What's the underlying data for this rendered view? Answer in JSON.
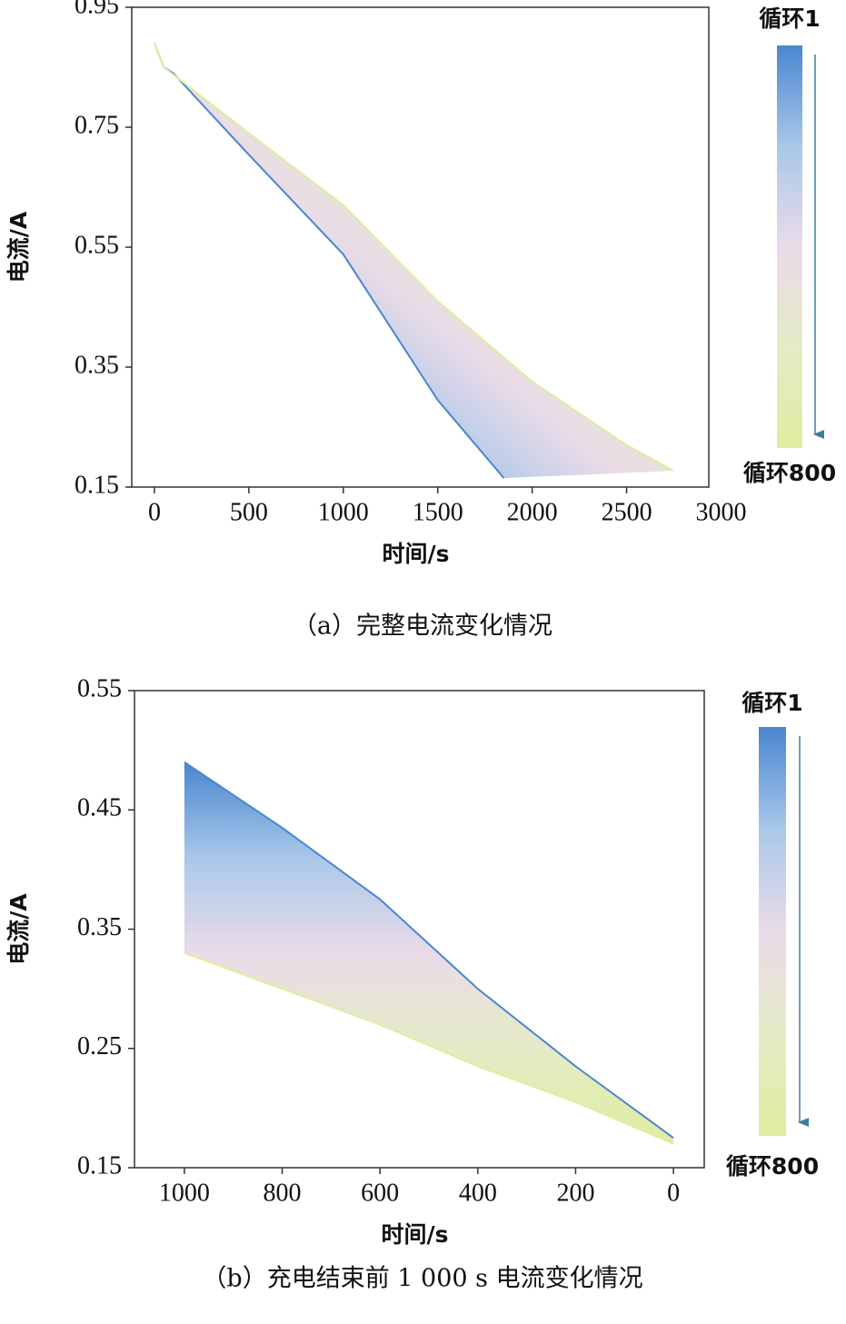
{
  "chart_data": [
    {
      "type": "line",
      "caption": "（a）完整电流变化情况",
      "x_label": "时间/s",
      "y_label": "电流/A",
      "xlim": [
        -120,
        2935
      ],
      "ylim": [
        0.15,
        0.95
      ],
      "xticks": [
        0,
        500,
        1000,
        1500,
        2000,
        2500,
        3000
      ],
      "yticks": [
        0.15,
        0.35,
        0.55,
        0.75,
        0.95
      ],
      "series": [
        {
          "name": "循环1",
          "color": "#4a86d0",
          "x": [
            0,
            50,
            100,
            500,
            1000,
            1500,
            1850
          ],
          "values": [
            0.89,
            0.85,
            0.84,
            0.704,
            0.538,
            0.295,
            0.165
          ]
        },
        {
          "name": "循环800",
          "color": "#dfeea0",
          "x": [
            0,
            50,
            500,
            1000,
            1500,
            2000,
            2500,
            2750
          ],
          "values": [
            0.89,
            0.85,
            0.74,
            0.62,
            0.46,
            0.326,
            0.22,
            0.177
          ]
        }
      ],
      "colorbar": {
        "labels": [
          "循环1",
          "循环800"
        ],
        "colors": [
          "#4a86d0",
          "#a9c8ea",
          "#eadbe8",
          "#e4ebc6",
          "#dfeea0"
        ]
      }
    },
    {
      "type": "line",
      "caption": "（b）充电结束前 1 000 s 电流变化情况",
      "x_label": "时间/s",
      "y_label": "电流/A",
      "xlim": [
        1102,
        -63
      ],
      "ylim": [
        0.15,
        0.55
      ],
      "xticks": [
        1000,
        800,
        600,
        400,
        200,
        0
      ],
      "yticks": [
        0.15,
        0.25,
        0.35,
        0.45,
        0.55
      ],
      "series": [
        {
          "name": "循环1",
          "color": "#4a86d0",
          "x": [
            1000,
            800,
            600,
            400,
            200,
            0
          ],
          "values": [
            0.49,
            0.435,
            0.375,
            0.3,
            0.235,
            0.175
          ]
        },
        {
          "name": "循环800",
          "color": "#dfeea0",
          "x": [
            1000,
            800,
            600,
            400,
            200,
            0
          ],
          "values": [
            0.33,
            0.3,
            0.27,
            0.235,
            0.205,
            0.17
          ]
        }
      ],
      "colorbar": {
        "labels": [
          "循环1",
          "循环800"
        ],
        "colors": [
          "#4a86d0",
          "#a9c8ea",
          "#eadbe8",
          "#e4ebc6",
          "#dfeea0"
        ]
      }
    }
  ]
}
